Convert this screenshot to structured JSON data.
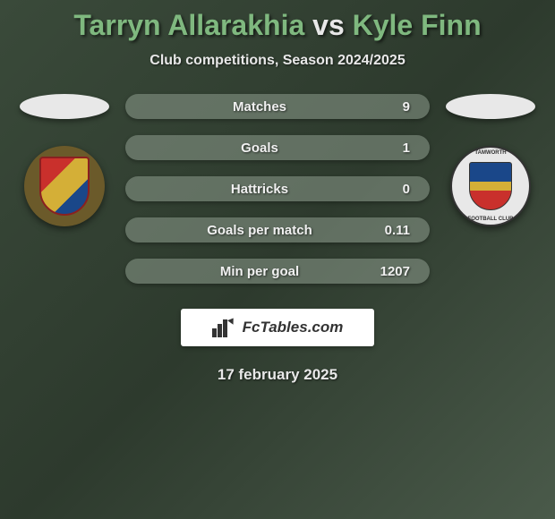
{
  "title": {
    "player1": "Tarryn Allarakhia",
    "vs": "vs",
    "player2": "Kyle Finn"
  },
  "subtitle": "Club competitions, Season 2024/2025",
  "stats": [
    {
      "label": "Matches",
      "value": "9"
    },
    {
      "label": "Goals",
      "value": "1"
    },
    {
      "label": "Hattricks",
      "value": "0"
    },
    {
      "label": "Goals per match",
      "value": "0.11"
    },
    {
      "label": "Min per goal",
      "value": "1207"
    }
  ],
  "logo_text": "FcTables.com",
  "date": "17 february 2025",
  "colors": {
    "title_highlight": "#7fb87f",
    "title_normal": "#e8e8e8",
    "pill_bg": "rgba(140,155,140,0.55)",
    "badge_left_bg": "#6b5a2a",
    "badge_right_bg": "#e8e8e8"
  },
  "badge_right_top": "TAMWORTH",
  "badge_right_bottom": "FOOTBALL CLUB"
}
